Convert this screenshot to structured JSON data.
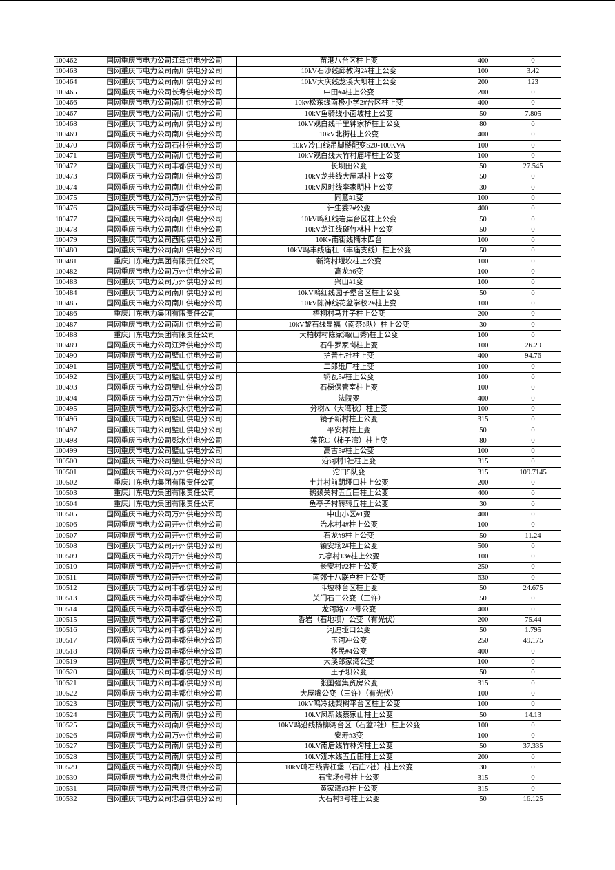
{
  "table": {
    "rows": [
      [
        "100462",
        "国网重庆市电力公司江津供电分公司",
        "苗港八台区柱上变",
        "400",
        "0"
      ],
      [
        "100463",
        "国网重庆市电力公司南川供电分公司",
        "10kV石沙线邱教沟2#柱上公变",
        "100",
        "3.42"
      ],
      [
        "100464",
        "国网重庆市电力公司南川供电分公司",
        "10kV大庆线龙溪大坝柱上公变",
        "200",
        "123"
      ],
      [
        "100465",
        "国网重庆市电力公司长寿供电分公司",
        "中田#4柱上公变",
        "200",
        "0"
      ],
      [
        "100466",
        "国网重庆市电力公司南川供电分公司",
        "10kv松东线南极小学2#台区柱上变",
        "400",
        "0"
      ],
      [
        "100467",
        "国网重庆市电力公司南川供电分公司",
        "10kV鱼骑线小面坡柱上公变",
        "50",
        "7.805"
      ],
      [
        "100468",
        "国网重庆市电力公司南川供电分公司",
        "10kV观白线千里钟家桥柱上公变",
        "80",
        "0"
      ],
      [
        "100469",
        "国网重庆市电力公司南川供电分公司",
        "10kV北街柱上公变",
        "400",
        "0"
      ],
      [
        "100470",
        "国网重庆市电力公司石柱供电分公司",
        "10kV冷白线吊脚楼配变S20-100KVA",
        "100",
        "0"
      ],
      [
        "100471",
        "国网重庆市电力公司南川供电分公司",
        "10kV观白线大竹村庙坪柱上公变",
        "100",
        "0"
      ],
      [
        "100472",
        "国网重庆市电力公司丰都供电分公司",
        "长坝田公变",
        "50",
        "27.545"
      ],
      [
        "100473",
        "国网重庆市电力公司南川供电分公司",
        "10kV龙共线大屋基柱上公变",
        "50",
        "0"
      ],
      [
        "100474",
        "国网重庆市电力公司南川供电分公司",
        "10kV风时线李家明柱上公变",
        "30",
        "0"
      ],
      [
        "100475",
        "国网重庆市电力公司万州供电分公司",
        "同意#1变",
        "100",
        "0"
      ],
      [
        "100476",
        "国网重庆市电力公司丰都供电分公司",
        "计生委2#公变",
        "400",
        "0"
      ],
      [
        "100477",
        "国网重庆市电力公司南川供电分公司",
        "10kV鸣红线岩扁台区柱上公变",
        "50",
        "0"
      ],
      [
        "100478",
        "国网重庆市电力公司南川供电分公司",
        "10kV龙江线斑竹林柱上公变",
        "50",
        "0"
      ],
      [
        "100479",
        "国网重庆市电力公司酉阳供电分公司",
        "10Kv南街线楠木四台",
        "100",
        "0"
      ],
      [
        "100480",
        "国网重庆市电力公司南川供电分公司",
        "10kV鸣丰线庙杠（丰庙支线）柱上公变",
        "50",
        "0"
      ],
      [
        "100481",
        "重庆川东电力集团有限责任公司",
        "新湾村堰坎柱上公变",
        "100",
        "0"
      ],
      [
        "100482",
        "国网重庆市电力公司万州供电分公司",
        "高龙#6变",
        "100",
        "0"
      ],
      [
        "100483",
        "国网重庆市电力公司万州供电分公司",
        "兴山#1变",
        "100",
        "0"
      ],
      [
        "100484",
        "国网重庆市电力公司南川供电分公司",
        "10kV鸣红线园子堡台区柱上公变",
        "50",
        "0"
      ],
      [
        "100485",
        "国网重庆市电力公司南川供电分公司",
        "10kV陈神线花盆学校2#柱上变",
        "100",
        "0"
      ],
      [
        "100486",
        "重庆川东电力集团有限责任公司",
        "梧桐村马井子柱上公变",
        "200",
        "0"
      ],
      [
        "100487",
        "国网重庆市电力公司南川供电分公司",
        "10kV黎石线显福（南茶6队）柱上公变",
        "30",
        "0"
      ],
      [
        "100488",
        "重庆川东电力集团有限责任公司",
        "大柏树村陈家湾(山秀)柱上公变",
        "100",
        "0"
      ],
      [
        "100489",
        "国网重庆市电力公司江津供电分公司",
        "石牛罗家岗柱上变",
        "100",
        "26.29"
      ],
      [
        "100490",
        "国网重庆市电力公司璧山供电分公司",
        "护普七社柱上变",
        "400",
        "94.76"
      ],
      [
        "100491",
        "国网重庆市电力公司璧山供电分公司",
        "二郎纸厂柱上变",
        "100",
        "0"
      ],
      [
        "100492",
        "国网重庆市电力公司璧山供电分公司",
        "铜瓦5#柱上公变",
        "100",
        "0"
      ],
      [
        "100493",
        "国网重庆市电力公司璧山供电分公司",
        "石梯保管室柱上变",
        "100",
        "0"
      ],
      [
        "100494",
        "国网重庆市电力公司万州供电分公司",
        "法院变",
        "400",
        "0"
      ],
      [
        "100495",
        "国网重庆市电力公司彭水供电分公司",
        "分树A（大湾秋）柱上变",
        "100",
        "0"
      ],
      [
        "100496",
        "国网重庆市电力公司璧山供电分公司",
        "镜子新村柱上公变",
        "315",
        "0"
      ],
      [
        "100497",
        "国网重庆市电力公司璧山供电分公司",
        "平安村柱上变",
        "50",
        "0"
      ],
      [
        "100498",
        "国网重庆市电力公司彭水供电分公司",
        "莲花C（柿子湾）柱上变",
        "80",
        "0"
      ],
      [
        "100499",
        "国网重庆市电力公司璧山供电分公司",
        "高古5#柱上公变",
        "100",
        "0"
      ],
      [
        "100500",
        "国网重庆市电力公司璧山供电分公司",
        "沿河村1社柱上变",
        "315",
        "0"
      ],
      [
        "100501",
        "国网重庆市电力公司万州供电分公司",
        "沱口5队变",
        "315",
        "109.7145"
      ],
      [
        "100502",
        "重庆川东电力集团有限责任公司",
        "土井村前朝垭口柱上公变",
        "200",
        "0"
      ],
      [
        "100503",
        "重庆川东电力集团有限责任公司",
        "鹅颈关村五丘田柱上公变",
        "400",
        "0"
      ],
      [
        "100504",
        "重庆川东电力集团有限责任公司",
        "鱼亭子村转转丘柱上公变",
        "30",
        "0"
      ],
      [
        "100505",
        "国网重庆市电力公司万州供电分公司",
        "中山小区#1变",
        "400",
        "0"
      ],
      [
        "100506",
        "国网重庆市电力公司开州供电分公司",
        "治水村4#柱上公变",
        "100",
        "0"
      ],
      [
        "100507",
        "国网重庆市电力公司开州供电分公司",
        "石龙#9柱上公变",
        "50",
        "11.24"
      ],
      [
        "100508",
        "国网重庆市电力公司开州供电分公司",
        "镇安场2#柱上公变",
        "500",
        "0"
      ],
      [
        "100509",
        "国网重庆市电力公司开州供电分公司",
        "九亭村13#柱上公变",
        "100",
        "0"
      ],
      [
        "100510",
        "国网重庆市电力公司开州供电分公司",
        "长安村#2柱上公变",
        "250",
        "0"
      ],
      [
        "100511",
        "国网重庆市电力公司开州供电分公司",
        "南郊十八联户柱上公变",
        "630",
        "0"
      ],
      [
        "100512",
        "国网重庆市电力公司丰都供电分公司",
        "斗坡林台区柱上变",
        "50",
        "24.675"
      ],
      [
        "100513",
        "国网重庆市电力公司丰都供电分公司",
        "关门石二公变（三许）",
        "50",
        "0"
      ],
      [
        "100514",
        "国网重庆市电力公司丰都供电分公司",
        "龙河路592号公变",
        "400",
        "0"
      ],
      [
        "100515",
        "国网重庆市电力公司丰都供电分公司",
        "香岩（石地坝）公变（有光伏）",
        "200",
        "75.44"
      ],
      [
        "100516",
        "国网重庆市电力公司丰都供电分公司",
        "河迪垭口公变",
        "50",
        "1.795"
      ],
      [
        "100517",
        "国网重庆市电力公司丰都供电分公司",
        "玉河冲公变",
        "250",
        "49.175"
      ],
      [
        "100518",
        "国网重庆市电力公司丰都供电分公司",
        "移民#4公变",
        "400",
        "0"
      ],
      [
        "100519",
        "国网重庆市电力公司丰都供电分公司",
        "大溪郎家湾公变",
        "100",
        "0"
      ],
      [
        "100520",
        "国网重庆市电力公司丰都供电分公司",
        "王子坝公变",
        "50",
        "0"
      ],
      [
        "100521",
        "国网重庆市电力公司丰都供电分公司",
        "张国强集资房公变",
        "315",
        "0"
      ],
      [
        "100522",
        "国网重庆市电力公司丰都供电分公司",
        "大屋嘴公变（三许）（有光伏）",
        "100",
        "0"
      ],
      [
        "100523",
        "国网重庆市电力公司南川供电分公司",
        "10kV鸣冷线梨树平台区柱上公变",
        "100",
        "0"
      ],
      [
        "100524",
        "国网重庆市电力公司南川供电分公司",
        "10kV凤新线蔡家山柱上公变",
        "50",
        "14.13"
      ],
      [
        "100525",
        "国网重庆市电力公司南川供电分公司",
        "10kV鸣沿线杨柳湾台区（石盆2社）柱上公变",
        "100",
        "0"
      ],
      [
        "100526",
        "国网重庆市电力公司万州供电分公司",
        "安寿#3变",
        "100",
        "0"
      ],
      [
        "100527",
        "国网重庆市电力公司南川供电分公司",
        "10kV南后线竹林沟柱上公变",
        "50",
        "37.335"
      ],
      [
        "100528",
        "国网重庆市电力公司南川供电分公司",
        "10kV观木线五丘田柱上公变",
        "200",
        "0"
      ],
      [
        "100529",
        "国网重庆市电力公司南川供电分公司",
        "10kV鸣石线青杠堡（石庄7社）柱上公变",
        "30",
        "0"
      ],
      [
        "100530",
        "国网重庆市电力公司忠县供电分公司",
        "石宝场6号柱上公变",
        "315",
        "0"
      ],
      [
        "100531",
        "国网重庆市电力公司忠县供电分公司",
        "黄家湾#3柱上公变",
        "315",
        "0"
      ],
      [
        "100532",
        "国网重庆市电力公司忠县供电分公司",
        "大石村3号柱上公变",
        "50",
        "16.125"
      ]
    ]
  }
}
